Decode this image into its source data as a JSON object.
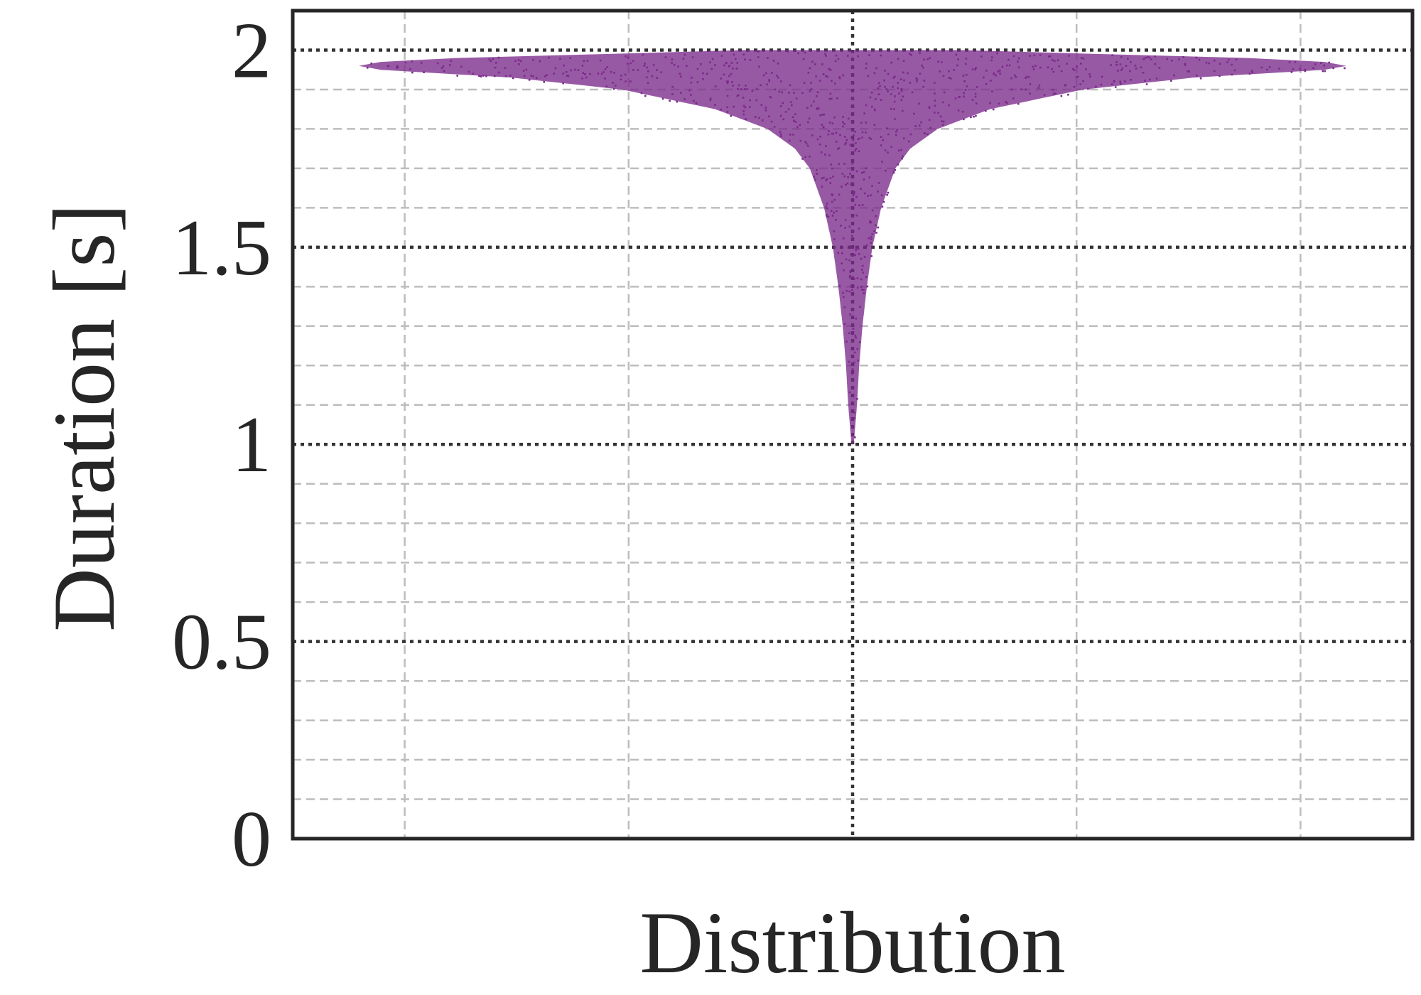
{
  "chart_data": {
    "type": "scatter",
    "chart_style": "violin-shaped jittered scatter (swarm) of durations",
    "xlabel": "Distribution",
    "ylabel": "Duration [s]",
    "ylim": [
      0,
      2.1
    ],
    "yticks": [
      {
        "value": 0,
        "label": "0"
      },
      {
        "value": 0.5,
        "label": "0.5"
      },
      {
        "value": 1,
        "label": "1"
      },
      {
        "value": 1.5,
        "label": "1.5"
      },
      {
        "value": 2,
        "label": "2"
      }
    ],
    "xlim": [
      -1,
      1
    ],
    "x_center": 0,
    "x_tick_labels_shown": false,
    "grid": {
      "major": true,
      "minor": true,
      "major_style": "dotted",
      "minor_style": "dashed"
    },
    "marker_color": "#7b2a8a",
    "y_range_of_points": [
      1.0,
      2.0
    ],
    "profile_half_width": [
      {
        "y": 1.0,
        "w": 0.002
      },
      {
        "y": 1.05,
        "w": 0.005
      },
      {
        "y": 1.1,
        "w": 0.008
      },
      {
        "y": 1.2,
        "w": 0.012
      },
      {
        "y": 1.3,
        "w": 0.018
      },
      {
        "y": 1.4,
        "w": 0.026
      },
      {
        "y": 1.5,
        "w": 0.036
      },
      {
        "y": 1.6,
        "w": 0.052
      },
      {
        "y": 1.7,
        "w": 0.078
      },
      {
        "y": 1.75,
        "w": 0.105
      },
      {
        "y": 1.8,
        "w": 0.155
      },
      {
        "y": 1.85,
        "w": 0.25
      },
      {
        "y": 1.9,
        "w": 0.42
      },
      {
        "y": 1.93,
        "w": 0.62
      },
      {
        "y": 1.95,
        "w": 0.86
      },
      {
        "y": 1.96,
        "w": 0.9
      },
      {
        "y": 1.97,
        "w": 0.86
      },
      {
        "y": 1.98,
        "w": 0.72
      },
      {
        "y": 1.99,
        "w": 0.45
      },
      {
        "y": 2.0,
        "w": 0.2
      }
    ],
    "point_count_approx": 60000
  }
}
